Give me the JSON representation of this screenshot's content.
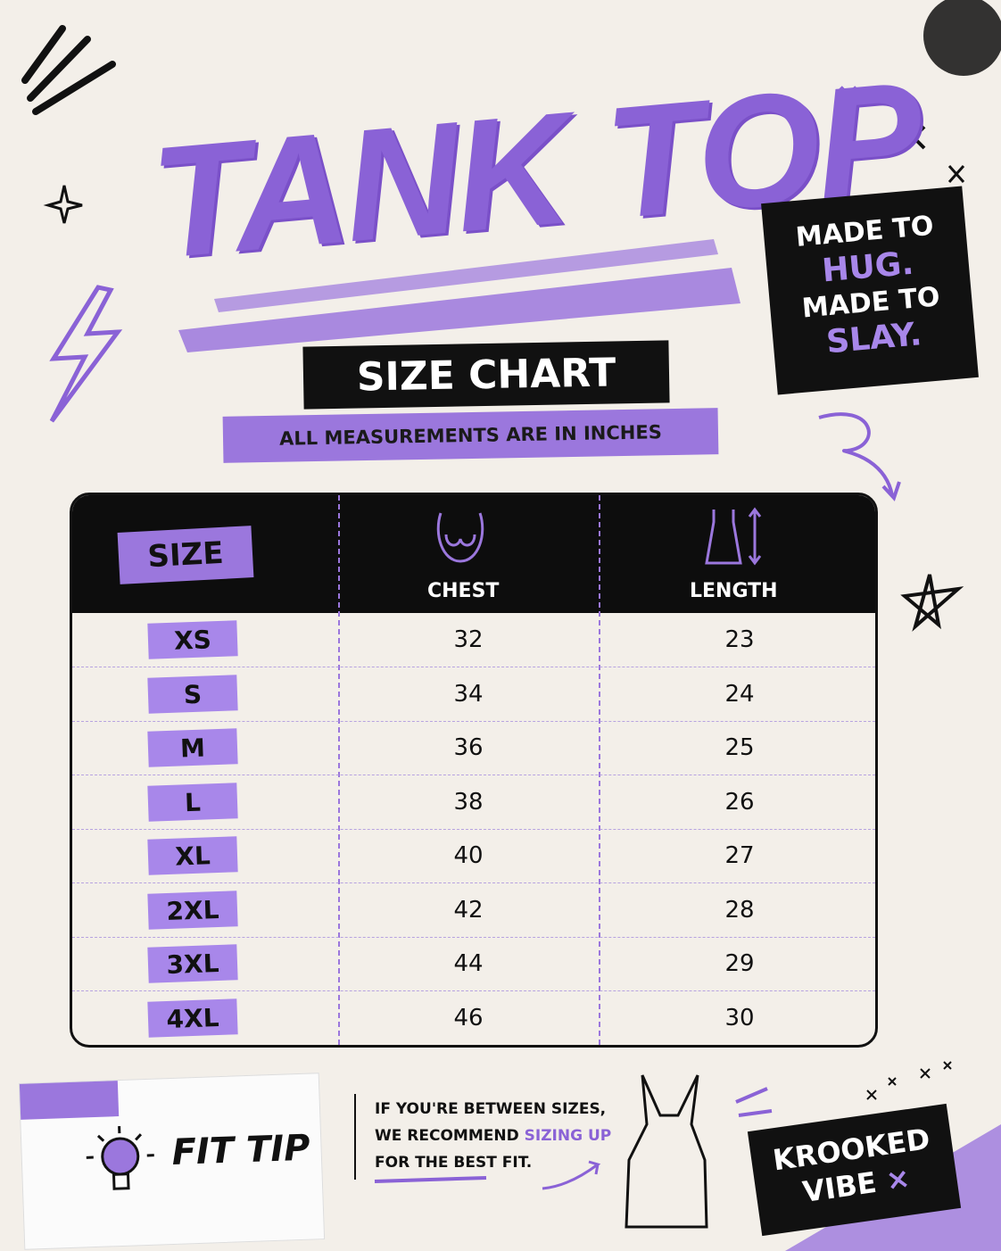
{
  "header": {
    "title": "TANK TOP",
    "subtitle": "SIZE CHART",
    "note": "ALL MEASUREMENTS ARE IN INCHES"
  },
  "badge": {
    "lines": [
      "MADE TO",
      "HUG.",
      "MADE TO",
      "SLAY."
    ]
  },
  "table": {
    "columns": [
      "SIZE",
      "CHEST",
      "LENGTH"
    ],
    "rows": [
      [
        "XS",
        32,
        23
      ],
      [
        "S",
        34,
        24
      ],
      [
        "M",
        36,
        25
      ],
      [
        "L",
        38,
        26
      ],
      [
        "XL",
        40,
        27
      ],
      [
        "2XL",
        42,
        28
      ],
      [
        "3XL",
        44,
        29
      ],
      [
        "4XL",
        46,
        30
      ]
    ]
  },
  "fit_tip": {
    "title": "FIT TIP",
    "text": [
      "IF YOU'RE BETWEEN SIZES,",
      "WE RECOMMEND",
      "SIZING UP",
      "FOR THE BEST FIT."
    ]
  },
  "brand": {
    "lines": [
      "KROOKED",
      "VIBE"
    ]
  }
}
